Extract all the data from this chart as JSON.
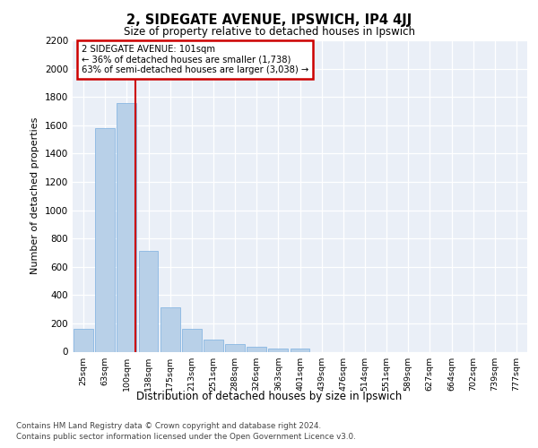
{
  "title1": "2, SIDEGATE AVENUE, IPSWICH, IP4 4JJ",
  "title2": "Size of property relative to detached houses in Ipswich",
  "xlabel": "Distribution of detached houses by size in Ipswich",
  "ylabel": "Number of detached properties",
  "categories": [
    "25sqm",
    "63sqm",
    "100sqm",
    "138sqm",
    "175sqm",
    "213sqm",
    "251sqm",
    "288sqm",
    "326sqm",
    "363sqm",
    "401sqm",
    "439sqm",
    "476sqm",
    "514sqm",
    "551sqm",
    "589sqm",
    "627sqm",
    "664sqm",
    "702sqm",
    "739sqm",
    "777sqm"
  ],
  "values": [
    160,
    1580,
    1760,
    710,
    315,
    160,
    88,
    55,
    35,
    20,
    20,
    0,
    0,
    0,
    0,
    0,
    0,
    0,
    0,
    0,
    0
  ],
  "bar_color": "#b8d0e8",
  "bar_edge_color": "#7aafe0",
  "vline_color": "#cc0000",
  "annotation_line1": "2 SIDEGATE AVENUE: 101sqm",
  "annotation_line2": "← 36% of detached houses are smaller (1,738)",
  "annotation_line3": "63% of semi-detached houses are larger (3,038) →",
  "annotation_box_edgecolor": "#cc0000",
  "ylim_max": 2200,
  "yticks": [
    0,
    200,
    400,
    600,
    800,
    1000,
    1200,
    1400,
    1600,
    1800,
    2000,
    2200
  ],
  "bg_color": "#eaeff7",
  "footer1": "Contains HM Land Registry data © Crown copyright and database right 2024.",
  "footer2": "Contains public sector information licensed under the Open Government Licence v3.0."
}
